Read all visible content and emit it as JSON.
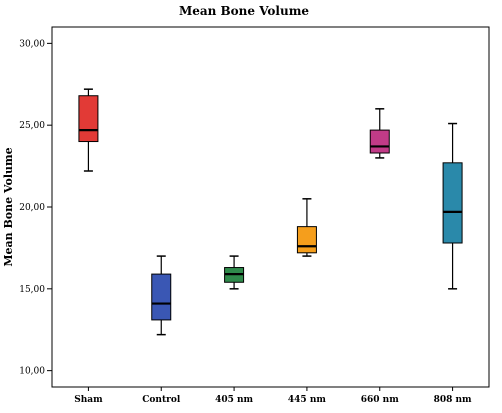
{
  "chart_data": {
    "type": "boxplot",
    "title": "Mean Bone Volume",
    "xlabel": "",
    "ylabel": "Mean Bone Volume",
    "ylim": [
      9.0,
      31.0
    ],
    "yticks": [
      10,
      15,
      20,
      25,
      30
    ],
    "ytick_labels": [
      "10,00",
      "15,00",
      "20,00",
      "25,00",
      "30,00"
    ],
    "grid": false,
    "categories": [
      "Sham",
      "Control",
      "405 nm",
      "445 nm",
      "660 nm",
      "808 nm"
    ],
    "boxes": [
      {
        "min": 22.2,
        "q1": 24.0,
        "median": 24.7,
        "q3": 26.8,
        "max": 27.2,
        "color": "#e23a36"
      },
      {
        "min": 12.2,
        "q1": 13.1,
        "median": 14.1,
        "q3": 15.9,
        "max": 17.0,
        "color": "#3a57b4"
      },
      {
        "min": 15.0,
        "q1": 15.4,
        "median": 15.9,
        "q3": 16.3,
        "max": 17.0,
        "color": "#2f8a4b"
      },
      {
        "min": 17.0,
        "q1": 17.2,
        "median": 17.6,
        "q3": 18.8,
        "max": 20.5,
        "color": "#f59e1c"
      },
      {
        "min": 23.0,
        "q1": 23.3,
        "median": 23.7,
        "q3": 24.7,
        "max": 26.0,
        "color": "#c13b87"
      },
      {
        "min": 15.0,
        "q1": 17.8,
        "median": 19.7,
        "q3": 22.7,
        "max": 25.1,
        "color": "#2a89aa"
      }
    ]
  }
}
